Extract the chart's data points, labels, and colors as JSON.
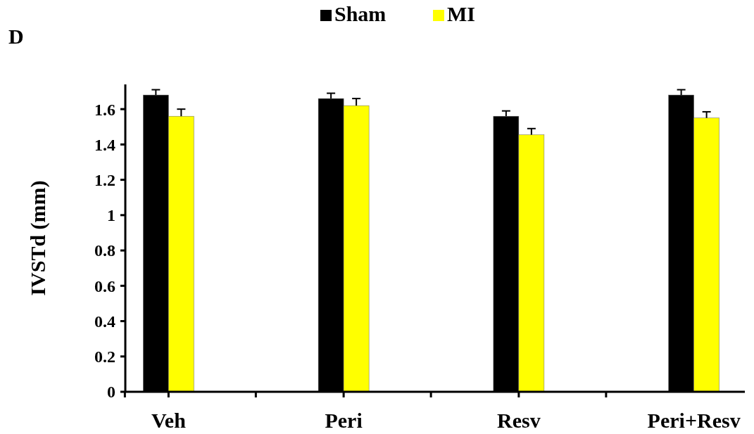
{
  "chart_data": {
    "type": "bar",
    "title": "D",
    "ylabel": "IVSTd (mm)",
    "categories": [
      "Veh",
      "Peri",
      "Resv",
      "Peri+Resv"
    ],
    "series": [
      {
        "name": "Sham",
        "color": "#000000",
        "values": [
          1.68,
          1.66,
          1.56,
          1.68
        ],
        "errors": [
          0.03,
          0.03,
          0.03,
          0.03
        ]
      },
      {
        "name": "MI",
        "color": "#ffff00",
        "values": [
          1.56,
          1.62,
          1.455,
          1.55
        ],
        "errors": [
          0.04,
          0.04,
          0.035,
          0.035
        ]
      }
    ],
    "ylim": [
      0,
      1.74
    ],
    "yticks": [
      0,
      0.2,
      0.4,
      0.6,
      0.8,
      1,
      1.2,
      1.4,
      1.6
    ],
    "legend": "top",
    "grid": false
  }
}
